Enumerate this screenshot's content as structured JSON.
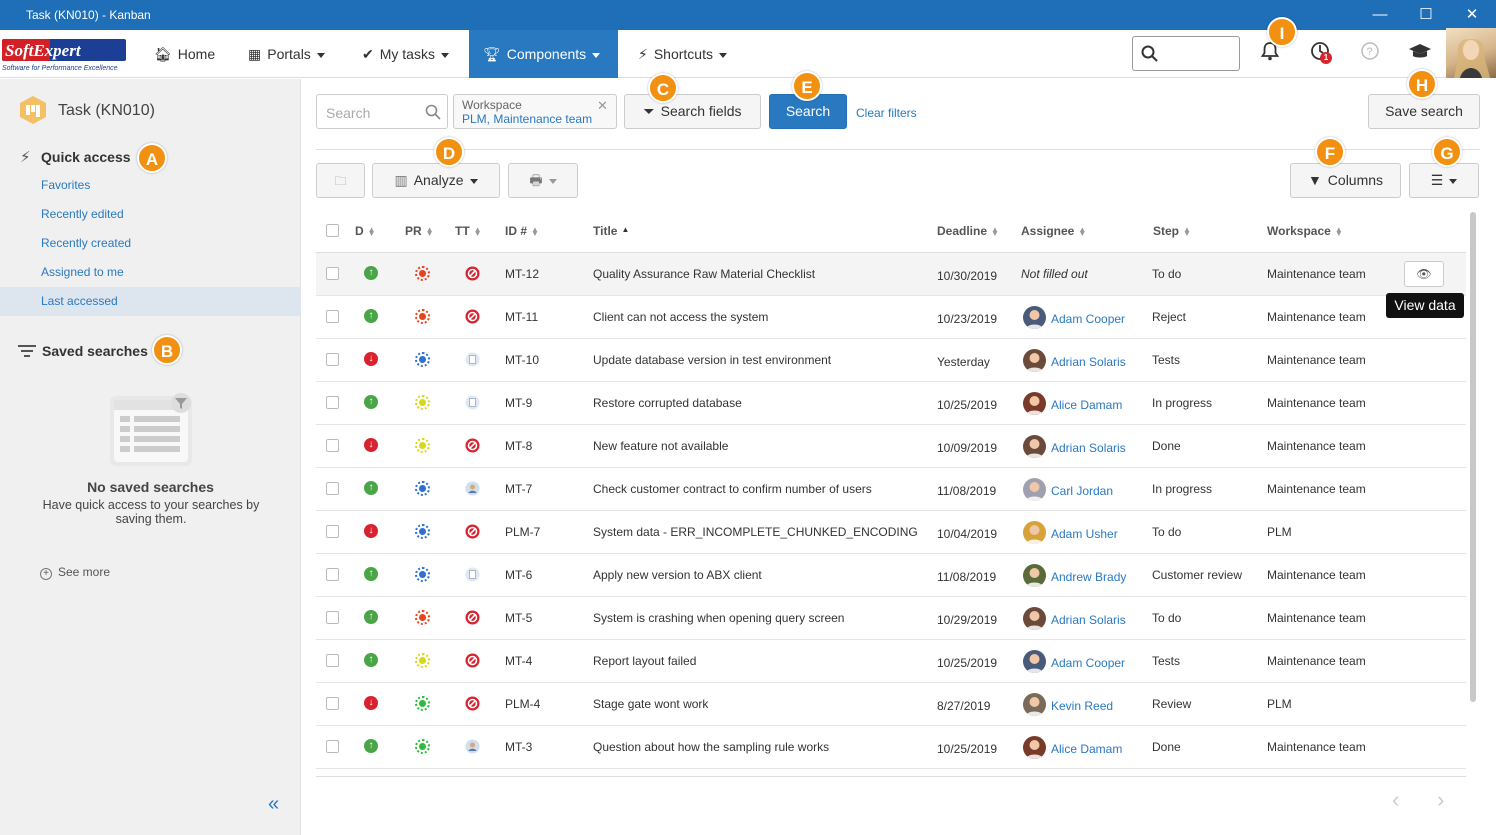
{
  "window": {
    "title": "Task (KN010) - Kanban"
  },
  "logo": {
    "name": "SoftExpert",
    "tagline": "Software for Performance Excellence"
  },
  "nav": {
    "items": [
      {
        "label": "Home",
        "icon": "home-icon"
      },
      {
        "label": "Portals",
        "icon": "grid-icon"
      },
      {
        "label": "My tasks",
        "icon": "check-icon"
      },
      {
        "label": "Components",
        "icon": "trophy-icon"
      },
      {
        "label": "Shortcuts",
        "icon": "bolt-icon"
      }
    ],
    "notifications_count": "1"
  },
  "sidebar": {
    "title": "Task (KN010)",
    "quick_access": "Quick access",
    "links": [
      "Favorites",
      "Recently edited",
      "Recently created",
      "Assigned to me",
      "Last accessed"
    ],
    "saved_searches": "Saved searches",
    "empty_title": "No saved searches",
    "empty_text": "Have quick access to your searches by saving them.",
    "see_more": "See more"
  },
  "toolbar": {
    "search_placeholder": "Search",
    "filter_label": "Workspace",
    "filter_value": "PLM, Maintenance team",
    "search_fields": "Search fields",
    "search": "Search",
    "clear_filters": "Clear filters",
    "save_search": "Save search",
    "analyze": "Analyze",
    "columns": "Columns",
    "tooltip": "View data"
  },
  "badges": {
    "A": "A",
    "B": "B",
    "C": "C",
    "D": "D",
    "E": "E",
    "F": "F",
    "G": "G",
    "H": "H",
    "I": "I"
  },
  "table": {
    "headers": [
      "D",
      "PR",
      "TT",
      "ID #",
      "Title",
      "Deadline",
      "Assignee",
      "Step",
      "Workspace"
    ],
    "rows": [
      {
        "id": "MT-12",
        "title": "Quality Assurance Raw Material Checklist",
        "deadline": "10/30/2019",
        "assignee": "Not filled out",
        "step": "To do",
        "workspace": "Maintenance team"
      },
      {
        "id": "MT-11",
        "title": "Client can not access the system",
        "deadline": "10/23/2019",
        "assignee": "Adam Cooper",
        "step": "Reject",
        "workspace": "Maintenance team"
      },
      {
        "id": "MT-10",
        "title": "Update database version in test environment",
        "deadline": "Yesterday",
        "assignee": "Adrian Solaris",
        "step": "Tests",
        "workspace": "Maintenance team"
      },
      {
        "id": "MT-9",
        "title": "Restore corrupted database",
        "deadline": "10/25/2019",
        "assignee": "Alice Damam",
        "step": "In progress",
        "workspace": "Maintenance team"
      },
      {
        "id": "MT-8",
        "title": "New feature not available",
        "deadline": "10/09/2019",
        "assignee": "Adrian Solaris",
        "step": "Done",
        "workspace": "Maintenance team"
      },
      {
        "id": "MT-7",
        "title": "Check customer contract to confirm number of users",
        "deadline": "11/08/2019",
        "assignee": "Carl Jordan",
        "step": "In progress",
        "workspace": "Maintenance team"
      },
      {
        "id": "PLM-7",
        "title": "System data - ERR_INCOMPLETE_CHUNKED_ENCODING",
        "deadline": "10/04/2019",
        "assignee": "Adam Usher",
        "step": "To do",
        "workspace": "PLM"
      },
      {
        "id": "MT-6",
        "title": "Apply new version to ABX client",
        "deadline": "11/08/2019",
        "assignee": "Andrew Brady",
        "step": "Customer review",
        "workspace": "Maintenance team"
      },
      {
        "id": "MT-5",
        "title": "System is crashing when opening query screen",
        "deadline": "10/29/2019",
        "assignee": "Adrian Solaris",
        "step": "To do",
        "workspace": "Maintenance team"
      },
      {
        "id": "MT-4",
        "title": "Report layout failed",
        "deadline": "10/25/2019",
        "assignee": "Adam Cooper",
        "step": "Tests",
        "workspace": "Maintenance team"
      },
      {
        "id": "PLM-4",
        "title": "Stage gate wont work",
        "deadline": "8/27/2019",
        "assignee": "Kevin Reed",
        "step": "Review",
        "workspace": "PLM"
      },
      {
        "id": "MT-3",
        "title": "Question about how the sampling rule works",
        "deadline": "10/25/2019",
        "assignee": "Alice Damam",
        "step": "Done",
        "workspace": "Maintenance team"
      }
    ]
  }
}
